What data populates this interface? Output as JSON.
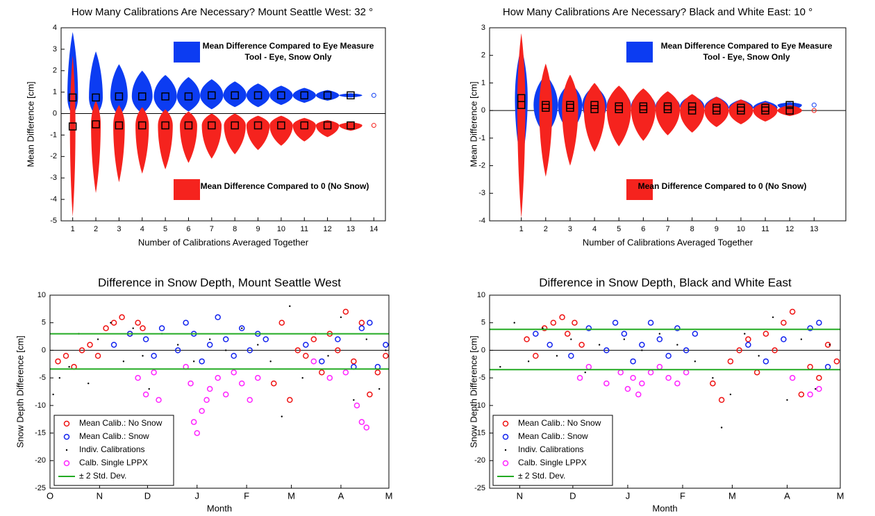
{
  "chart_data": [
    {
      "type": "violin",
      "title": "How Many Calibrations Are Necessary? Mount Seattle West: 32 °",
      "xlabel": "Number of Calibrations Averaged Together",
      "ylabel": "Mean Difference [cm]",
      "x": [
        1,
        2,
        3,
        4,
        5,
        6,
        7,
        8,
        9,
        10,
        11,
        12,
        13,
        14
      ],
      "xlim": [
        0.5,
        14.5
      ],
      "xticks": [
        1,
        2,
        3,
        4,
        5,
        6,
        7,
        8,
        9,
        10,
        11,
        12,
        13,
        14
      ],
      "ylim": [
        -5,
        4
      ],
      "yticks": [
        -5,
        -4,
        -3,
        -2,
        -1,
        0,
        1,
        2,
        3,
        4
      ],
      "series": [
        {
          "name": "Mean Difference Compared to Eye Measure Tool - Eye, Snow Only",
          "color": "#0c3cf2",
          "values": [
            0.75,
            0.75,
            0.8,
            0.8,
            0.8,
            0.8,
            0.85,
            0.85,
            0.85,
            0.85,
            0.85,
            0.85,
            0.85,
            0.85
          ],
          "low": [
            -0.1,
            -0.1,
            -0.1,
            0,
            0,
            0.1,
            0.2,
            0.3,
            0.3,
            0.4,
            0.5,
            0.6,
            0.75,
            null
          ],
          "high": [
            3.8,
            2.9,
            2.3,
            2.0,
            1.8,
            1.7,
            1.6,
            1.5,
            1.4,
            1.3,
            1.2,
            1.1,
            0.95,
            null
          ]
        },
        {
          "name": "Mean Difference Compared to 0 (No Snow)",
          "color": "#f5231e",
          "values": [
            -0.6,
            -0.5,
            -0.55,
            -0.55,
            -0.55,
            -0.55,
            -0.55,
            -0.55,
            -0.55,
            -0.55,
            -0.55,
            -0.55,
            -0.55,
            -0.55
          ],
          "low": [
            -4.8,
            -3.7,
            -3.2,
            -2.8,
            -2.6,
            -2.3,
            -2.1,
            -1.9,
            -1.7,
            -1.5,
            -1.3,
            -1.1,
            -0.8,
            null
          ],
          "high": [
            2.7,
            0.6,
            0.4,
            0.3,
            0.2,
            0.1,
            0,
            0,
            -0.1,
            -0.1,
            -0.2,
            -0.3,
            -0.4,
            null
          ]
        }
      ]
    },
    {
      "type": "violin",
      "title": "How Many Calibrations Are Necessary? Black and White East: 10 °",
      "xlabel": "Number of Calibrations Averaged Together",
      "ylabel": "Mean Difference [cm]",
      "x": [
        1,
        2,
        3,
        4,
        5,
        6,
        7,
        8,
        9,
        10,
        11,
        12,
        13
      ],
      "xlim": [
        -0.3,
        14.3
      ],
      "xticks": [
        1,
        2,
        3,
        4,
        5,
        6,
        7,
        8,
        9,
        10,
        11,
        12,
        13
      ],
      "ylim": [
        -4,
        3
      ],
      "yticks": [
        -4,
        -3,
        -2,
        -1,
        0,
        1,
        2,
        3
      ],
      "series": [
        {
          "name": "Mean Difference Compared to Eye Measure Tool - Eye, Snow Only",
          "color": "#0c3cf2",
          "values": [
            0.45,
            0.2,
            0.2,
            0.2,
            0.15,
            0.15,
            0.15,
            0.15,
            0.1,
            0.1,
            0.1,
            0.2,
            0.2
          ],
          "low": [
            -1.9,
            -0.9,
            -0.8,
            -0.6,
            -0.5,
            -0.4,
            -0.3,
            -0.25,
            -0.2,
            -0.15,
            -0.1,
            0,
            null
          ],
          "high": [
            2.3,
            1.3,
            1.0,
            0.9,
            0.8,
            0.7,
            0.6,
            0.55,
            0.5,
            0.4,
            0.35,
            0.3,
            null
          ]
        },
        {
          "name": "Mean Difference Compared to 0 (No Snow)",
          "color": "#f5231e",
          "values": [
            0.2,
            0.1,
            0.1,
            0.05,
            0.05,
            0.05,
            0.05,
            0,
            0,
            0,
            0,
            0,
            0
          ],
          "low": [
            -3.9,
            -2.4,
            -2.0,
            -1.5,
            -1.3,
            -1.1,
            -0.9,
            -0.8,
            -0.6,
            -0.5,
            -0.4,
            -0.2,
            null
          ],
          "high": [
            2.8,
            1.7,
            1.3,
            1.0,
            0.9,
            0.8,
            0.7,
            0.6,
            0.5,
            0.4,
            0.3,
            0.2,
            null
          ]
        }
      ]
    },
    {
      "type": "scatter",
      "title": "Difference in Snow Depth, Mount Seattle West",
      "xlabel": "Month",
      "ylabel": "Snow Depth Difference [cm]",
      "xlim": [
        0,
        212
      ],
      "xticks": [
        {
          "value": 0,
          "label": "O"
        },
        {
          "value": 31,
          "label": "N"
        },
        {
          "value": 61,
          "label": "D"
        },
        {
          "value": 92,
          "label": "J"
        },
        {
          "value": 123,
          "label": "F"
        },
        {
          "value": 151,
          "label": "M"
        },
        {
          "value": 182,
          "label": "A"
        },
        {
          "value": 212,
          "label": "M"
        }
      ],
      "ylim": [
        -25,
        10
      ],
      "yticks": [
        -25,
        -20,
        -15,
        -10,
        -5,
        0,
        5,
        10
      ],
      "series": [
        {
          "name": "Mean Calib.: No Snow",
          "color": "#ee1111",
          "marker": "o",
          "x": [
            5,
            10,
            15,
            20,
            25,
            30,
            35,
            40,
            45,
            50,
            55,
            58,
            140,
            145,
            150,
            155,
            160,
            165,
            170,
            175,
            180,
            185,
            190,
            195,
            200,
            205,
            210
          ],
          "y": [
            -2,
            -1,
            -3,
            0,
            1,
            -1,
            4,
            5,
            6,
            3,
            5,
            4,
            -6,
            5,
            -9,
            0,
            -1,
            2,
            -4,
            3,
            0,
            7,
            -2,
            5,
            -8,
            -4,
            -1
          ]
        },
        {
          "name": "Mean Calib.: Snow",
          "color": "#1122ee",
          "marker": "o",
          "x": [
            40,
            50,
            60,
            65,
            70,
            80,
            85,
            90,
            95,
            100,
            105,
            110,
            115,
            120,
            125,
            130,
            135,
            160,
            170,
            180,
            190,
            195,
            200,
            205,
            210
          ],
          "y": [
            1,
            3,
            2,
            -1,
            4,
            0,
            5,
            3,
            -2,
            1,
            6,
            2,
            -1,
            4,
            0,
            3,
            2,
            1,
            -2,
            2,
            -3,
            4,
            5,
            -3,
            1
          ]
        },
        {
          "name": "Indiv. Calibrations",
          "color": "#000000",
          "marker": ".",
          "x": [
            2,
            6,
            12,
            18,
            24,
            30,
            38,
            46,
            52,
            58,
            62,
            70,
            80,
            90,
            100,
            110,
            120,
            130,
            138,
            145,
            150,
            158,
            166,
            174,
            182,
            190,
            198,
            206,
            210
          ],
          "y": [
            -8,
            -5,
            -3,
            3,
            -6,
            2,
            5,
            -2,
            4,
            -1,
            -7,
            3,
            1,
            -2,
            2,
            0,
            4,
            1,
            -2,
            -12,
            8,
            -5,
            3,
            -1,
            6,
            -9,
            2,
            -7,
            0
          ]
        },
        {
          "name": "Calb. Single LPPX",
          "color": "#ff22ff",
          "marker": "o",
          "x": [
            55,
            60,
            65,
            68,
            85,
            88,
            90,
            92,
            95,
            98,
            100,
            105,
            110,
            115,
            120,
            125,
            130,
            165,
            175,
            185,
            192,
            195,
            198
          ],
          "y": [
            -5,
            -8,
            -4,
            -9,
            -3,
            -6,
            -13,
            -15,
            -11,
            -9,
            -7,
            -5,
            -8,
            -4,
            -6,
            -9,
            -5,
            -2,
            -5,
            -4,
            -10,
            -13,
            -14
          ]
        },
        {
          "name": "± 2 Std. Dev.",
          "color": "#22aa22",
          "marker": "-",
          "hlines": [
            3.0,
            -3.4
          ]
        }
      ]
    },
    {
      "type": "scatter",
      "title": "Difference in Snow Depth, Black and White East",
      "xlabel": "Month",
      "ylabel": "Snow Depth Difference [cm]",
      "xlim": [
        14,
        212
      ],
      "xticks": [
        {
          "value": 31,
          "label": "N"
        },
        {
          "value": 61,
          "label": "D"
        },
        {
          "value": 92,
          "label": "J"
        },
        {
          "value": 123,
          "label": "F"
        },
        {
          "value": 151,
          "label": "M"
        },
        {
          "value": 182,
          "label": "A"
        },
        {
          "value": 212,
          "label": "M"
        }
      ],
      "ylim": [
        -25,
        10
      ],
      "yticks": [
        -25,
        -20,
        -15,
        -10,
        -5,
        0,
        5,
        10
      ],
      "series": [
        {
          "name": "Mean Calib.: No Snow",
          "color": "#ee1111",
          "marker": "o",
          "x": [
            35,
            40,
            45,
            50,
            55,
            58,
            62,
            66,
            140,
            145,
            150,
            155,
            160,
            165,
            170,
            175,
            180,
            185,
            190,
            195,
            200,
            205,
            210
          ],
          "y": [
            2,
            -1,
            4,
            5,
            6,
            3,
            5,
            1,
            -6,
            -9,
            -2,
            0,
            2,
            -4,
            3,
            0,
            5,
            7,
            -8,
            -3,
            -5,
            1,
            -2
          ]
        },
        {
          "name": "Mean Calib.: Snow",
          "color": "#1122ee",
          "marker": "o",
          "x": [
            40,
            48,
            60,
            70,
            80,
            85,
            90,
            95,
            100,
            105,
            110,
            115,
            120,
            125,
            130,
            160,
            170,
            180,
            195,
            200,
            205
          ],
          "y": [
            3,
            1,
            -1,
            4,
            0,
            5,
            3,
            -2,
            1,
            5,
            2,
            -1,
            4,
            0,
            3,
            1,
            -2,
            2,
            4,
            5,
            -3
          ]
        },
        {
          "name": "Indiv. Calibrations",
          "color": "#000000",
          "marker": ".",
          "x": [
            20,
            28,
            36,
            44,
            52,
            60,
            68,
            76,
            90,
            100,
            110,
            120,
            130,
            140,
            145,
            150,
            158,
            166,
            174,
            182,
            190,
            198,
            206
          ],
          "y": [
            -3,
            5,
            -2,
            4,
            -1,
            2,
            -4,
            1,
            2,
            0,
            3,
            1,
            -2,
            -5,
            -14,
            -8,
            3,
            -1,
            6,
            -9,
            2,
            -7,
            1
          ]
        },
        {
          "name": "Calb. Single LPPX",
          "color": "#ff22ff",
          "marker": "o",
          "x": [
            65,
            70,
            80,
            88,
            92,
            95,
            98,
            100,
            105,
            110,
            115,
            120,
            125,
            185,
            195,
            200
          ],
          "y": [
            -5,
            -3,
            -6,
            -4,
            -7,
            -5,
            -8,
            -6,
            -4,
            -3,
            -5,
            -6,
            -4,
            -5,
            -8,
            -7
          ]
        },
        {
          "name": "± 2 Std. Dev.",
          "color": "#22aa22",
          "marker": "-",
          "hlines": [
            3.8,
            -3.5
          ]
        }
      ]
    }
  ]
}
